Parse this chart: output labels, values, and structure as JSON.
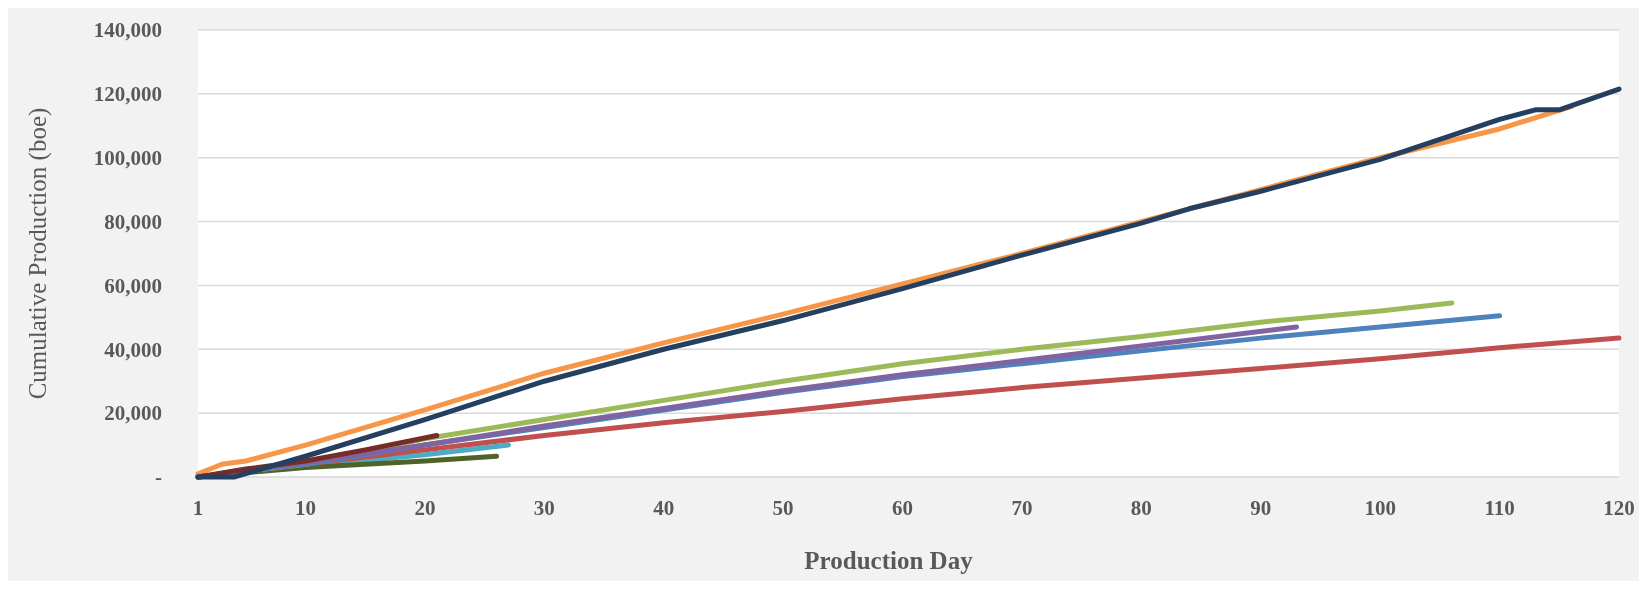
{
  "chart_data": {
    "type": "line",
    "xlabel": "Production Day",
    "ylabel": "Cumulative Production (boe)",
    "xlim": [
      1,
      120
    ],
    "xticks": [
      1,
      10,
      20,
      30,
      40,
      50,
      60,
      70,
      80,
      90,
      100,
      110,
      120
    ],
    "ylim": [
      0,
      140000
    ],
    "yticks": [
      {
        "value": 0,
        "label": "-"
      },
      {
        "value": 20000,
        "label": "20,000"
      },
      {
        "value": 40000,
        "label": "40,000"
      },
      {
        "value": 60000,
        "label": "60,000"
      },
      {
        "value": 80000,
        "label": "80,000"
      },
      {
        "value": 100000,
        "label": "100,000"
      },
      {
        "value": 120000,
        "label": "120,000"
      },
      {
        "value": 140000,
        "label": "140,000"
      }
    ],
    "grid": "y",
    "line_style": "solid",
    "marker": "none",
    "series": [
      {
        "color": "#f79646",
        "x": [
          1,
          3,
          5,
          10,
          20,
          30,
          40,
          50,
          60,
          70,
          80,
          90,
          100,
          110,
          116
        ],
        "values": [
          1000,
          4000,
          5000,
          10000,
          21000,
          32500,
          42000,
          51000,
          60500,
          70000,
          80000,
          90000,
          100000,
          109000,
          116000
        ]
      },
      {
        "color": "#4bacc6",
        "x": [
          1,
          10,
          20,
          27
        ],
        "values": [
          0,
          3500,
          7000,
          10000
        ]
      },
      {
        "color": "#4f6228",
        "x": [
          1,
          10,
          20,
          26
        ],
        "values": [
          0,
          3000,
          5000,
          6500
        ]
      },
      {
        "color": "#c0504d",
        "x": [
          1,
          10,
          20,
          30,
          40,
          50,
          60,
          70,
          80,
          90,
          100,
          110,
          120
        ],
        "values": [
          0,
          4000,
          8500,
          13000,
          17000,
          20500,
          24500,
          28000,
          31000,
          34000,
          37000,
          40500,
          43500
        ]
      },
      {
        "color": "#9bbb59",
        "x": [
          1,
          10,
          20,
          30,
          40,
          50,
          60,
          70,
          80,
          90,
          100,
          106
        ],
        "values": [
          0,
          4000,
          12000,
          18000,
          24000,
          30000,
          35500,
          40000,
          44000,
          48500,
          52000,
          54500
        ]
      },
      {
        "color": "#4f81bd",
        "x": [
          1,
          10,
          20,
          30,
          40,
          50,
          60,
          70,
          80,
          90,
          100,
          110
        ],
        "values": [
          0,
          4000,
          10000,
          15500,
          21000,
          26500,
          31500,
          35500,
          39500,
          43500,
          47000,
          50500
        ]
      },
      {
        "color": "#8064a2",
        "x": [
          1,
          10,
          20,
          30,
          40,
          50,
          60,
          70,
          80,
          93
        ],
        "values": [
          0,
          4500,
          10000,
          16000,
          21500,
          27000,
          32000,
          36500,
          41000,
          47000
        ]
      },
      {
        "color": "#772c2a",
        "x": [
          1,
          5,
          10,
          15,
          21
        ],
        "values": [
          0,
          2500,
          5000,
          8500,
          13000
        ]
      },
      {
        "color": "#243f60",
        "x": [
          1,
          4,
          10,
          20,
          30,
          40,
          50,
          60,
          70,
          80,
          84,
          90,
          100,
          110,
          113,
          115,
          120
        ],
        "values": [
          0,
          0,
          6500,
          18000,
          30000,
          40000,
          49000,
          59000,
          69500,
          79500,
          84000,
          89500,
          99500,
          112000,
          115000,
          115000,
          121500
        ]
      }
    ]
  }
}
